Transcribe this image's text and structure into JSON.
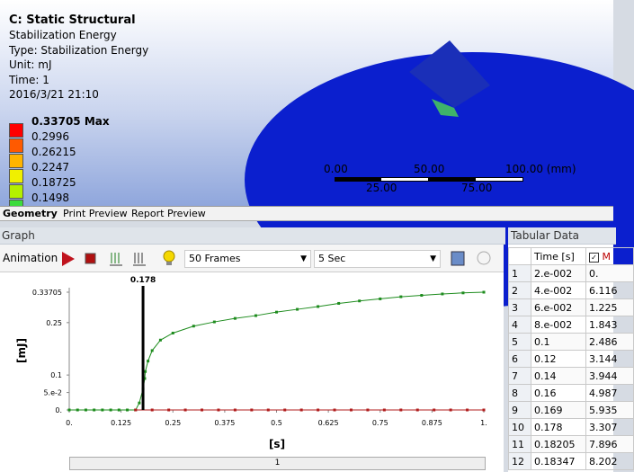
{
  "view": {
    "title": "C: Static Structural",
    "lines": [
      "Stabilization Energy",
      "Type: Stabilization Energy",
      "Unit: mJ",
      "Time: 1",
      "2016/3/21 21:10"
    ],
    "legend": [
      "0.33705 Max",
      "0.2996",
      "0.26215",
      "0.2247",
      "0.18725",
      "0.1498"
    ],
    "scale_top": [
      "0.00",
      "50.00",
      "100.00 (mm)"
    ],
    "scale_bottom": [
      "25.00",
      "75.00"
    ]
  },
  "tabs": [
    "Geometry",
    "Print Preview",
    "Report Preview"
  ],
  "graph_panel": {
    "title": "Graph",
    "animation": "Animation",
    "frames": "50 Frames",
    "duration": "5 Sec",
    "slider": "1"
  },
  "graph": {
    "type": "line",
    "ylabel": "[mJ]",
    "xlabel": "[s]",
    "xlim": [
      0,
      1
    ],
    "ylim": [
      0,
      0.33705
    ],
    "xticks": [
      {
        "value": 0,
        "label": "0."
      },
      0.125,
      0.25,
      0.375,
      0.5,
      0.625,
      0.75,
      0.875,
      {
        "value": 1,
        "label": "1."
      }
    ],
    "yticks": [
      {
        "value": 0,
        "label": "0."
      },
      {
        "value": 0.05,
        "label": "5.e-2"
      },
      0.1,
      0.25,
      0.33705
    ],
    "cursor": 0.178,
    "series": [
      {
        "color": "#1e8c1e",
        "x": [
          0,
          0.02,
          0.04,
          0.06,
          0.08,
          0.1,
          0.12,
          0.14,
          0.16,
          0.169,
          0.178,
          0.18205,
          0.18347,
          0.19,
          0.2,
          0.22,
          0.25,
          0.3,
          0.35,
          0.4,
          0.45,
          0.5,
          0.55,
          0.6,
          0.65,
          0.7,
          0.75,
          0.8,
          0.85,
          0.9,
          0.95,
          1
        ],
        "values": [
          0,
          0,
          0,
          0,
          0,
          0,
          0,
          0,
          0,
          0.02,
          0.06,
          0.09,
          0.11,
          0.14,
          0.17,
          0.2,
          0.22,
          0.24,
          0.252,
          0.262,
          0.27,
          0.28,
          0.288,
          0.296,
          0.305,
          0.312,
          0.318,
          0.324,
          0.328,
          0.332,
          0.335,
          0.33705
        ]
      },
      {
        "color": "#b01e1e",
        "x": [
          0.16,
          0.2,
          0.24,
          0.28,
          0.32,
          0.36,
          0.4,
          0.44,
          0.48,
          0.52,
          0.56,
          0.6,
          0.64,
          0.68,
          0.72,
          0.76,
          0.8,
          0.84,
          0.88,
          0.92,
          0.96,
          1
        ],
        "values": [
          0,
          0,
          0,
          0,
          0,
          0,
          0,
          0,
          0,
          0,
          0,
          0,
          0,
          0,
          0,
          0,
          0,
          0,
          0,
          0,
          0,
          0
        ]
      }
    ]
  },
  "tabular": {
    "title": "Tabular Data",
    "header": [
      "Time [s]",
      "M"
    ],
    "rows": [
      [
        "1",
        "2.e-002",
        "0."
      ],
      [
        "2",
        "4.e-002",
        "6.116"
      ],
      [
        "3",
        "6.e-002",
        "1.225"
      ],
      [
        "4",
        "8.e-002",
        "1.843"
      ],
      [
        "5",
        "0.1",
        "2.486"
      ],
      [
        "6",
        "0.12",
        "3.144"
      ],
      [
        "7",
        "0.14",
        "3.944"
      ],
      [
        "8",
        "0.16",
        "4.987"
      ],
      [
        "9",
        "0.169",
        "5.935"
      ],
      [
        "10",
        "0.178",
        "3.307"
      ],
      [
        "11",
        "0.18205",
        "7.896"
      ],
      [
        "12",
        "0.18347",
        "8.202"
      ]
    ]
  }
}
